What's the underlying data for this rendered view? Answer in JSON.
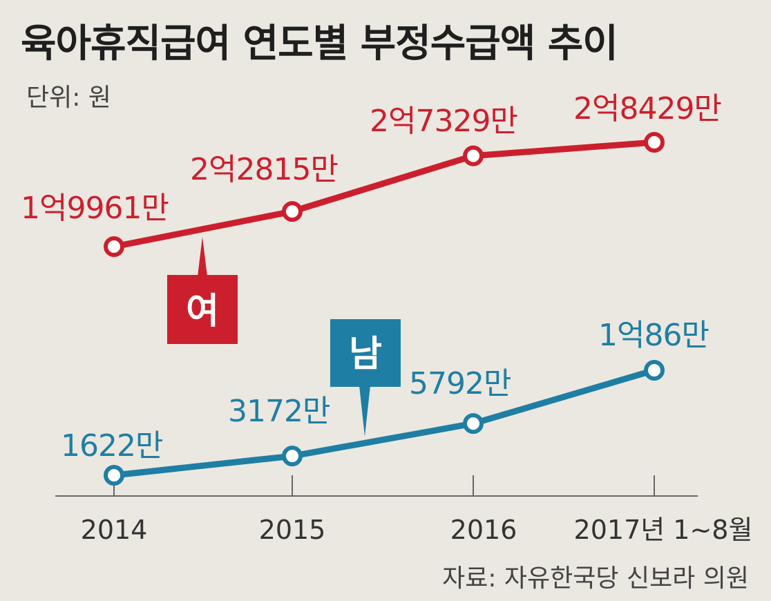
{
  "title": "육아휴직급여 연도별 부정수급액 추이",
  "unit_label": "단위: 원",
  "source": "자료: 자유한국당 신보라 의원",
  "colors": {
    "female": "#cc1f2d",
    "male": "#1f7ea3",
    "axis": "#666666"
  },
  "chart_data": {
    "type": "line",
    "title": "육아휴직급여 연도별 부정수급액 추이",
    "categories": [
      "2014",
      "2015",
      "2016",
      "2017년 1~8월"
    ],
    "grid": false,
    "series": [
      {
        "name": "여",
        "values": [
          199610000,
          228150000,
          273290000,
          284290000
        ],
        "labels": [
          "1억9961만",
          "2억2815만",
          "2억7329만",
          "2억8429만"
        ]
      },
      {
        "name": "남",
        "values": [
          16220000,
          31720000,
          57920000,
          100860000
        ],
        "labels": [
          "1622만",
          "3172만",
          "5792만",
          "1억86만"
        ]
      }
    ]
  }
}
